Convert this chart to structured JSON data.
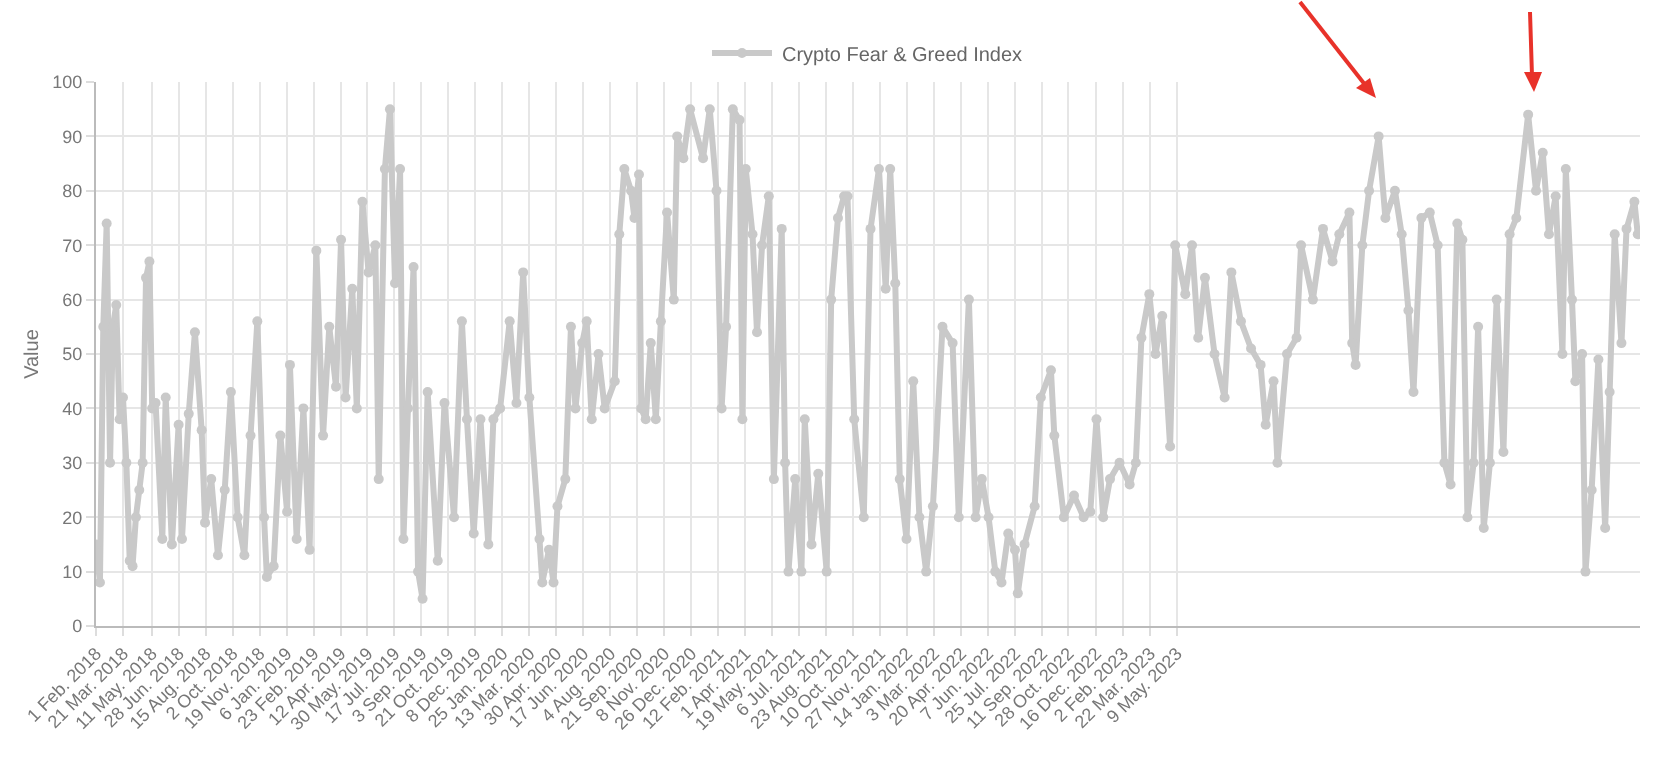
{
  "chart_data": {
    "type": "line",
    "ylabel": "Value",
    "legend": "top",
    "grid": true,
    "marker": "circle",
    "line_style": "solid",
    "xlim": [
      "2018-02-01",
      "2025-08-10"
    ],
    "ylim": [
      0,
      100
    ],
    "yticks": [
      0,
      10,
      20,
      30,
      40,
      50,
      60,
      70,
      80,
      90,
      100
    ],
    "xticks": [
      {
        "value": "2018-02-01",
        "label": "1 Feb. 2018"
      },
      {
        "value": "2018-03-21",
        "label": "21 Mar. 2018"
      },
      {
        "value": "2018-05-11",
        "label": "11 May. 2018"
      },
      {
        "value": "2018-06-28",
        "label": "28 Jun. 2018"
      },
      {
        "value": "2018-08-15",
        "label": "15 Aug. 2018"
      },
      {
        "value": "2018-10-02",
        "label": "2 Oct. 2018"
      },
      {
        "value": "2018-11-19",
        "label": "19 Nov. 2018"
      },
      {
        "value": "2019-01-06",
        "label": "6 Jan. 2019"
      },
      {
        "value": "2019-02-23",
        "label": "23 Feb. 2019"
      },
      {
        "value": "2019-04-12",
        "label": "12 Apr. 2019"
      },
      {
        "value": "2019-05-30",
        "label": "30 May. 2019"
      },
      {
        "value": "2019-07-17",
        "label": "17 Jul. 2019"
      },
      {
        "value": "2019-09-03",
        "label": "3 Sep. 2019"
      },
      {
        "value": "2019-10-21",
        "label": "21 Oct. 2019"
      },
      {
        "value": "2019-12-08",
        "label": "8 Dec. 2019"
      },
      {
        "value": "2020-01-25",
        "label": "25 Jan. 2020"
      },
      {
        "value": "2020-03-13",
        "label": "13 Mar. 2020"
      },
      {
        "value": "2020-04-30",
        "label": "30 Apr. 2020"
      },
      {
        "value": "2020-06-17",
        "label": "17 Jun. 2020"
      },
      {
        "value": "2020-08-04",
        "label": "4 Aug. 2020"
      },
      {
        "value": "2020-09-21",
        "label": "21 Sep. 2020"
      },
      {
        "value": "2020-11-08",
        "label": "8 Nov. 2020"
      },
      {
        "value": "2020-12-26",
        "label": "26 Dec. 2020"
      },
      {
        "value": "2021-02-12",
        "label": "12 Feb. 2021"
      },
      {
        "value": "2021-04-01",
        "label": "1 Apr. 2021"
      },
      {
        "value": "2021-05-19",
        "label": "19 May. 2021"
      },
      {
        "value": "2021-07-06",
        "label": "6 Jul. 2021"
      },
      {
        "value": "2021-08-23",
        "label": "23 Aug. 2021"
      },
      {
        "value": "2021-10-10",
        "label": "10 Oct. 2021"
      },
      {
        "value": "2021-11-27",
        "label": "27 Nov. 2021"
      },
      {
        "value": "2022-01-14",
        "label": "14 Jan. 2022"
      },
      {
        "value": "2022-03-03",
        "label": "3 Mar. 2022"
      },
      {
        "value": "2022-04-20",
        "label": "20 Apr. 2022"
      },
      {
        "value": "2022-06-07",
        "label": "7 Jun. 2022"
      },
      {
        "value": "2022-07-25",
        "label": "25 Jul. 2022"
      },
      {
        "value": "2022-09-11",
        "label": "11 Sep. 2022"
      },
      {
        "value": "2022-10-28",
        "label": "28 Oct. 2022"
      },
      {
        "value": "2022-12-16",
        "label": "16 Dec. 2022"
      },
      {
        "value": "2023-02-02",
        "label": "2 Feb. 2023"
      },
      {
        "value": "2023-03-22",
        "label": "22 Mar. 2023"
      },
      {
        "value": "2023-05-09",
        "label": "9 May. 2023"
      }
    ],
    "x": [
      "2018-02-01",
      "2018-02-08",
      "2018-02-14",
      "2018-02-20",
      "2018-02-26",
      "2018-03-03",
      "2018-03-09",
      "2018-03-15",
      "2018-03-21",
      "2018-03-27",
      "2018-04-02",
      "2018-04-07",
      "2018-04-13",
      "2018-04-19",
      "2018-04-25",
      "2018-05-01",
      "2018-05-07",
      "2018-05-12",
      "2018-05-18",
      "2018-05-30",
      "2018-06-05",
      "2018-06-16",
      "2018-06-28",
      "2018-07-04",
      "2018-07-16",
      "2018-07-27",
      "2018-08-08",
      "2018-08-14",
      "2018-08-25",
      "2018-09-06",
      "2018-09-18",
      "2018-09-29",
      "2018-10-11",
      "2018-10-23",
      "2018-11-03",
      "2018-11-15",
      "2018-11-27",
      "2018-12-02",
      "2018-12-14",
      "2018-12-26",
      "2019-01-07",
      "2019-01-12",
      "2019-01-24",
      "2019-02-05",
      "2019-02-16",
      "2019-02-28",
      "2019-03-12",
      "2019-03-23",
      "2019-04-04",
      "2019-04-13",
      "2019-04-21",
      "2019-05-03",
      "2019-05-11",
      "2019-05-21",
      "2019-06-01",
      "2019-06-13",
      "2019-06-19",
      "2019-06-30",
      "2019-07-09",
      "2019-07-18",
      "2019-07-27",
      "2019-08-02",
      "2019-08-10",
      "2019-08-20",
      "2019-08-28",
      "2019-09-05",
      "2019-09-14",
      "2019-10-02",
      "2019-10-14",
      "2019-10-31",
      "2019-11-14",
      "2019-11-23",
      "2019-12-05",
      "2019-12-17",
      "2019-12-31",
      "2020-01-09",
      "2020-01-21",
      "2020-02-07",
      "2020-02-19",
      "2020-03-02",
      "2020-03-13",
      "2020-03-31",
      "2020-04-05",
      "2020-04-17",
      "2020-04-25",
      "2020-05-02",
      "2020-05-16",
      "2020-05-26",
      "2020-06-03",
      "2020-06-15",
      "2020-06-23",
      "2020-07-02",
      "2020-07-14",
      "2020-07-25",
      "2020-08-12",
      "2020-08-20",
      "2020-08-29",
      "2020-09-10",
      "2020-09-16",
      "2020-09-24",
      "2020-09-28",
      "2020-10-06",
      "2020-10-15",
      "2020-10-24",
      "2020-11-02",
      "2020-11-13",
      "2020-11-25",
      "2020-12-01",
      "2020-12-12",
      "2020-12-24",
      "2021-01-16",
      "2021-01-28",
      "2021-02-09",
      "2021-02-18",
      "2021-02-26",
      "2021-03-10",
      "2021-03-22",
      "2021-03-27",
      "2021-04-02",
      "2021-04-14",
      "2021-04-22",
      "2021-05-01",
      "2021-05-13",
      "2021-05-22",
      "2021-06-05",
      "2021-06-11",
      "2021-06-17",
      "2021-06-29",
      "2021-07-10",
      "2021-07-16",
      "2021-07-28",
      "2021-08-09",
      "2021-08-24",
      "2021-09-01",
      "2021-09-13",
      "2021-09-24",
      "2021-09-30",
      "2021-10-12",
      "2021-10-29",
      "2021-11-10",
      "2021-11-25",
      "2021-12-07",
      "2021-12-15",
      "2021-12-24",
      "2022-01-01",
      "2022-01-13",
      "2022-01-25",
      "2022-02-05",
      "2022-02-17",
      "2022-03-01",
      "2022-03-18",
      "2022-04-05",
      "2022-04-16",
      "2022-05-04",
      "2022-05-16",
      "2022-05-27",
      "2022-06-08",
      "2022-06-20",
      "2022-07-01",
      "2022-07-13",
      "2022-07-25",
      "2022-07-30",
      "2022-08-11",
      "2022-08-29",
      "2022-09-09",
      "2022-09-27",
      "2022-10-03",
      "2022-10-20",
      "2022-11-07",
      "2022-11-24",
      "2022-12-06",
      "2022-12-17",
      "2022-12-29",
      "2023-01-10",
      "2023-01-27",
      "2023-02-14",
      "2023-02-25",
      "2023-03-07",
      "2023-03-21",
      "2023-04-01",
      "2023-04-13",
      "2023-04-27",
      "2023-05-06",
      "2023-05-24",
      "2023-06-05",
      "2023-06-16",
      "2023-06-28",
      "2023-07-15",
      "2023-08-02",
      "2023-08-14",
      "2023-08-31",
      "2023-09-18",
      "2023-10-05",
      "2023-10-14",
      "2023-10-28",
      "2023-11-04",
      "2023-11-21",
      "2023-12-08",
      "2023-12-16",
      "2024-01-06",
      "2024-01-24",
      "2024-02-10",
      "2024-02-22",
      "2024-03-11",
      "2024-03-16",
      "2024-03-22",
      "2024-04-03",
      "2024-04-15",
      "2024-05-02",
      "2024-05-14",
      "2024-05-31",
      "2024-06-12",
      "2024-06-24",
      "2024-07-03",
      "2024-07-17",
      "2024-08-01",
      "2024-08-15",
      "2024-08-27",
      "2024-09-07",
      "2024-09-19",
      "2024-09-28",
      "2024-10-07",
      "2024-10-18",
      "2024-10-26",
      "2024-11-05",
      "2024-11-16",
      "2024-11-28",
      "2024-12-10",
      "2024-12-21",
      "2025-01-02",
      "2025-01-23",
      "2025-02-06",
      "2025-02-18",
      "2025-03-01",
      "2025-03-13",
      "2025-03-25",
      "2025-03-31",
      "2025-04-11",
      "2025-04-17",
      "2025-04-29",
      "2025-05-05",
      "2025-05-16",
      "2025-05-28",
      "2025-06-09",
      "2025-06-17",
      "2025-06-26",
      "2025-07-08",
      "2025-07-17",
      "2025-07-31",
      "2025-08-06"
    ],
    "series": [
      {
        "name": "Crypto Fear & Greed Index",
        "color": "#c9c9c9",
        "values": [
          15,
          8,
          55,
          74,
          30,
          55,
          59,
          38,
          42,
          30,
          12,
          11,
          20,
          25,
          30,
          64,
          67,
          40,
          41,
          16,
          42,
          15,
          37,
          16,
          39,
          54,
          36,
          19,
          27,
          13,
          25,
          43,
          20,
          13,
          35,
          56,
          20,
          9,
          11,
          35,
          21,
          48,
          16,
          40,
          14,
          69,
          35,
          55,
          44,
          71,
          42,
          62,
          40,
          78,
          65,
          70,
          27,
          84,
          95,
          63,
          84,
          16,
          40,
          66,
          10,
          5,
          43,
          12,
          41,
          20,
          56,
          38,
          17,
          38,
          15,
          38,
          40,
          56,
          41,
          65,
          42,
          16,
          8,
          14,
          8,
          22,
          27,
          55,
          40,
          52,
          56,
          38,
          50,
          40,
          45,
          72,
          84,
          80,
          75,
          83,
          40,
          38,
          52,
          38,
          56,
          76,
          60,
          90,
          86,
          95,
          86,
          95,
          80,
          40,
          55,
          95,
          93,
          38,
          84,
          72,
          54,
          70,
          79,
          27,
          73,
          30,
          10,
          27,
          10,
          38,
          15,
          28,
          10,
          60,
          75,
          79,
          79,
          38,
          20,
          73,
          84,
          62,
          84,
          63,
          27,
          16,
          45,
          20,
          10,
          22,
          55,
          52,
          20,
          60,
          20,
          27,
          20,
          10,
          8,
          17,
          14,
          6,
          15,
          22,
          42,
          47,
          35,
          20,
          24,
          20,
          21,
          38,
          20,
          27,
          30,
          26,
          30,
          53,
          61,
          50,
          57,
          33,
          70,
          61,
          70,
          53,
          64,
          50,
          42,
          65,
          56,
          51,
          48,
          37,
          45,
          30,
          50,
          53,
          70,
          60,
          73,
          67,
          72,
          76,
          52,
          48,
          70,
          80,
          90,
          75,
          80,
          72,
          58,
          43,
          75,
          76,
          70,
          30,
          26,
          74,
          71,
          20,
          30,
          55,
          18,
          30,
          60,
          32,
          72,
          75,
          94,
          80,
          87,
          72,
          79,
          50,
          84,
          60,
          45,
          50,
          10,
          25,
          49,
          18,
          43,
          72,
          52,
          73,
          78,
          72
        ]
      }
    ]
  }
}
